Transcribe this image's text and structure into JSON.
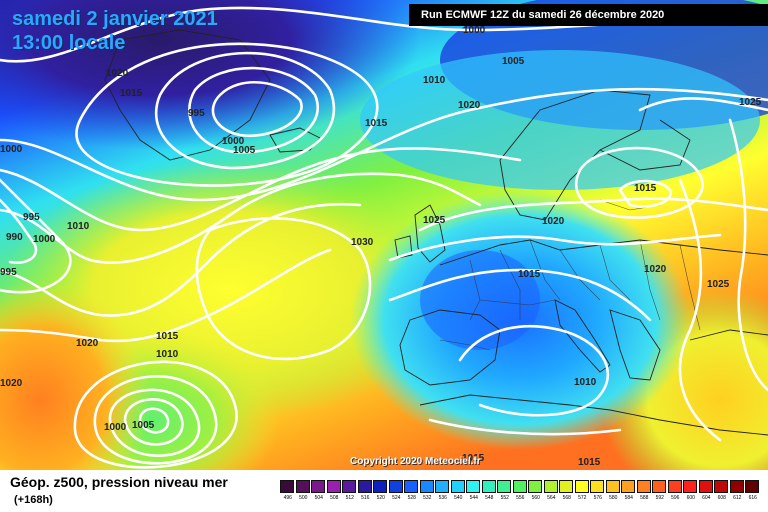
{
  "header": {
    "date": "samedi 2 janvier 2021",
    "time": "13:00 locale",
    "run": "Run ECMWF 12Z du samedi 26 décembre 2020"
  },
  "copyright": "Copyright 2020 Meteociel.fr",
  "footer": {
    "parameter": "Géop. z500, pression niveau mer",
    "lead_time": "(+168h)"
  },
  "colors": {
    "isobar": "#ffffff",
    "coastline": "#222222",
    "title_text": "#29a8ff"
  },
  "isobar_labels": [
    "1000",
    "1005",
    "1020",
    "1015",
    "995",
    "1000",
    "1005",
    "1010",
    "1020",
    "1015",
    "1025",
    "1015",
    "1020",
    "1025",
    "1020",
    "1015",
    "1025",
    "1030",
    "1000",
    "995",
    "990",
    "1000",
    "1010",
    "1020",
    "1015",
    "1010",
    "1020",
    "1000",
    "1005",
    "1015",
    "1010",
    "995",
    "1015"
  ],
  "scale_labels": [
    "496",
    "500",
    "504",
    "508",
    "512",
    "516",
    "520",
    "524",
    "528",
    "532",
    "536",
    "540",
    "544",
    "548",
    "552",
    "556",
    "560",
    "564",
    "568",
    "572",
    "576",
    "580",
    "584",
    "588",
    "592",
    "596",
    "600",
    "604",
    "608",
    "612",
    "616"
  ],
  "scale_colors": [
    "#3a0a3a",
    "#55105a",
    "#7a1a8a",
    "#9a20b0",
    "#5a1aa0",
    "#2a1aa0",
    "#1020c0",
    "#1040e0",
    "#1a60ff",
    "#1a88ff",
    "#20b0ff",
    "#20d0ff",
    "#30f0f0",
    "#30f0c0",
    "#40f090",
    "#50f060",
    "#80f040",
    "#b0f030",
    "#e0f020",
    "#ffff20",
    "#ffe020",
    "#ffc020",
    "#ffa020",
    "#ff8020",
    "#ff6020",
    "#ff4020",
    "#ff2020",
    "#e01010",
    "#c00808",
    "#900000",
    "#600000"
  ]
}
